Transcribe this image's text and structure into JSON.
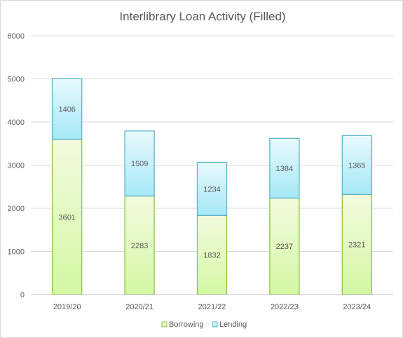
{
  "chart_data": {
    "type": "bar",
    "stacked": true,
    "title": "Interlibrary  Loan  Activity  (Filled)",
    "categories": [
      "2019/20",
      "2020/21",
      "2021/22",
      "2022/23",
      "2023/24"
    ],
    "series": [
      {
        "name": "Borrowing",
        "values": [
          3601,
          2283,
          1832,
          2237,
          2321
        ],
        "fill_top": "#f2fbde",
        "fill_bottom": "#d3f7a3",
        "stroke": "#8fc548"
      },
      {
        "name": "Lending",
        "values": [
          1406,
          1509,
          1234,
          1384,
          1365
        ],
        "fill_top": "#e8fafd",
        "fill_bottom": "#a5e8f5",
        "stroke": "#5eb4c8"
      }
    ],
    "ylim": [
      0,
      6000
    ],
    "yticks": [
      "0",
      "1000",
      "2000",
      "3000",
      "4000",
      "5000",
      "6000"
    ],
    "grid": true,
    "legend": "bottom"
  }
}
